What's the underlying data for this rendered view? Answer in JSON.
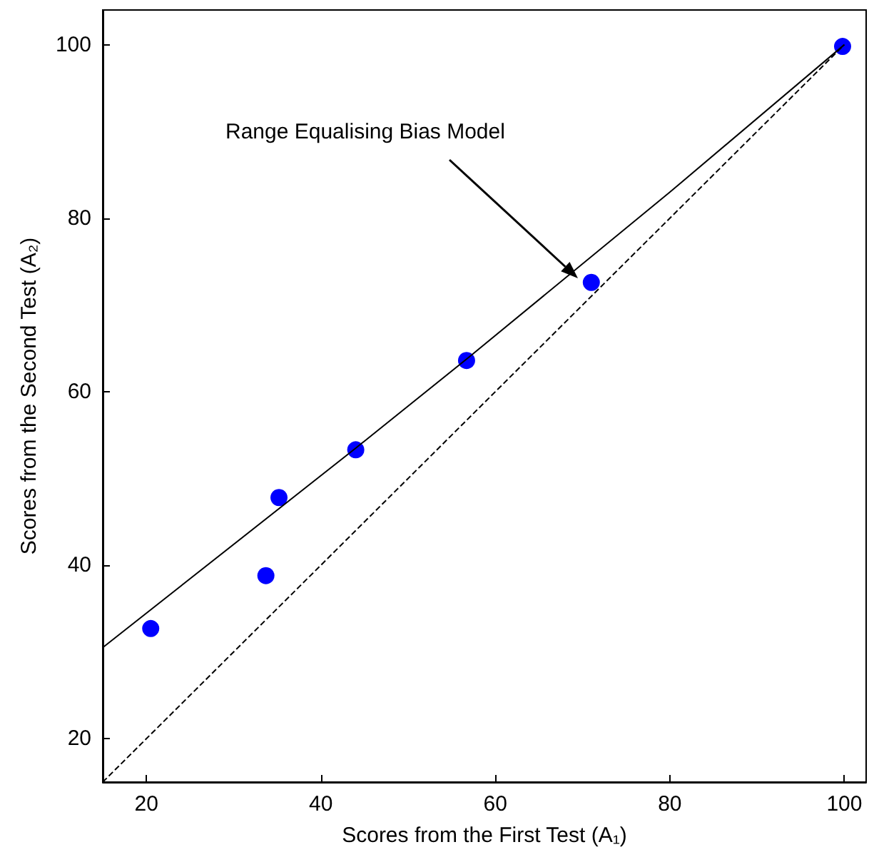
{
  "chart_data": {
    "type": "scatter",
    "xlabel": "Scores from the First Test (A₁)",
    "ylabel": "Scores from the Second Test (A₂)",
    "annotations": [
      "Range Equalising Bias Model"
    ],
    "series": [
      {
        "type": "line",
        "color": "#000000",
        "line_style": "solid",
        "marker": "none",
        "x": [
          15,
          44,
          57,
          80,
          100
        ],
        "values": [
          30.5,
          53.5,
          64,
          83,
          100
        ]
      },
      {
        "type": "line",
        "color": "#000000",
        "line_style": "dashed",
        "marker": "none",
        "x": [
          15,
          100
        ],
        "values": [
          15,
          100
        ]
      },
      {
        "color": "#0000ff",
        "marker": "circle",
        "x": [
          20.5,
          33.7,
          35.2,
          44,
          56.7,
          71,
          99.8
        ],
        "values": [
          32.7,
          38.8,
          47.8,
          53.3,
          63.6,
          72.6,
          99.8
        ]
      }
    ],
    "xlim": [
      15,
      102.5
    ],
    "ylim": [
      15,
      104
    ],
    "xticks": [
      20,
      40,
      60,
      80,
      100
    ],
    "yticks": [
      20,
      40,
      60,
      80,
      100
    ],
    "grid": false
  }
}
